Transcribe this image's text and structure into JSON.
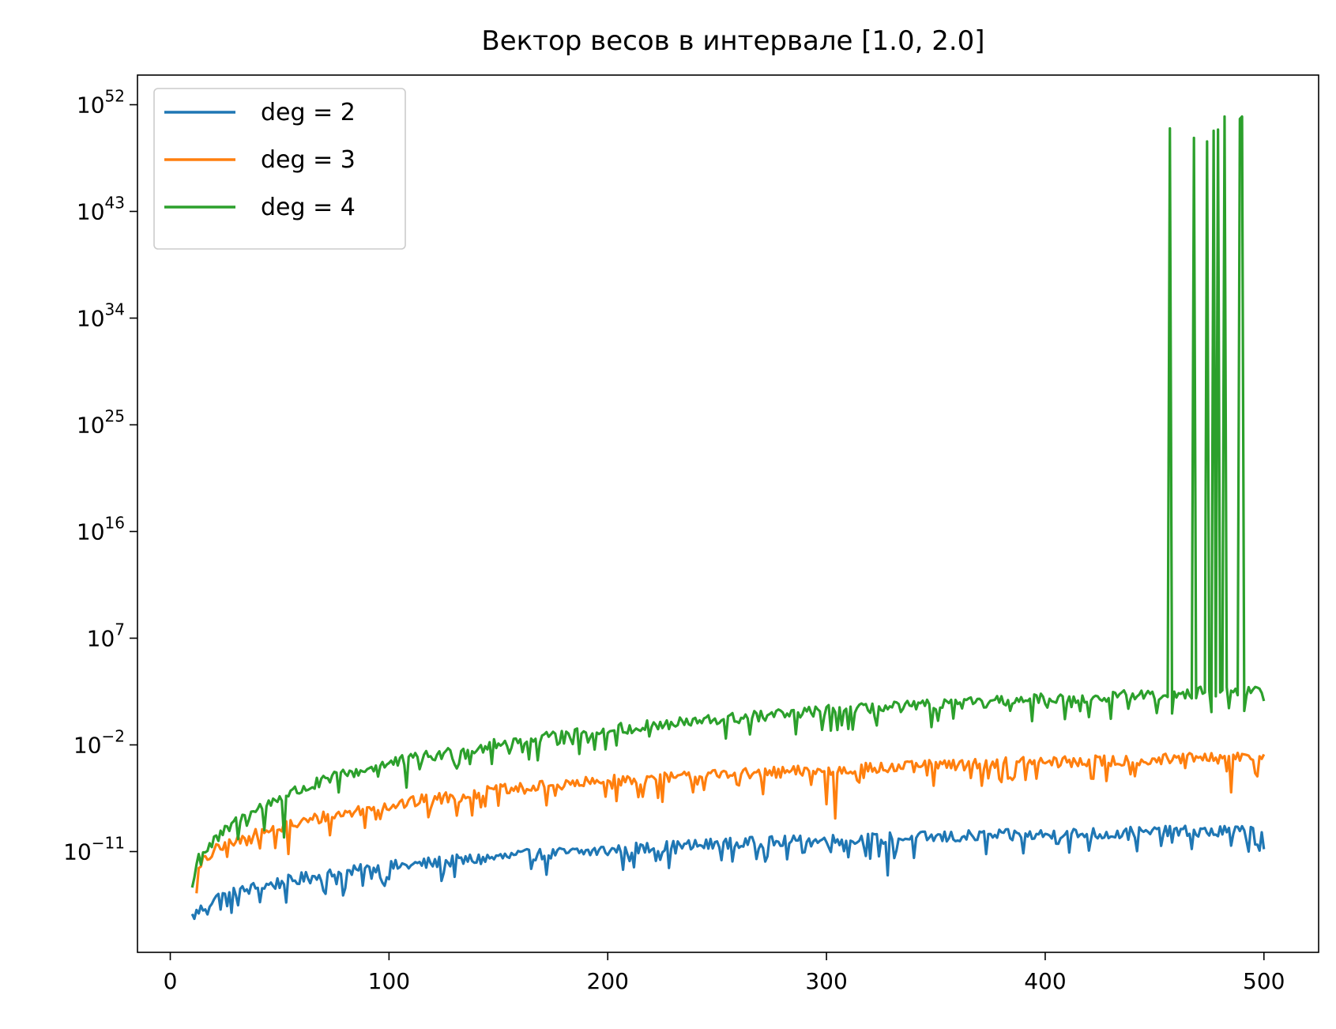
{
  "colors": {
    "deg2": "#1f77b4",
    "deg3": "#ff7f0e",
    "deg4": "#2ca02c",
    "axes": "#000000",
    "background": "#ffffff"
  },
  "chart_data": {
    "type": "line",
    "title": "Вектор весов в интервале [1.0, 2.0]",
    "xlabel": "",
    "ylabel": "",
    "yscale": "log",
    "xlim": [
      -15,
      525
    ],
    "ylim_log10": [
      -19.5,
      54.5
    ],
    "grid": false,
    "legend_position": "top-left",
    "x_ticks": [
      0,
      100,
      200,
      300,
      400,
      500
    ],
    "y_ticks": [
      {
        "base": "10",
        "exp": "52",
        "log10": 52
      },
      {
        "base": "10",
        "exp": "43",
        "log10": 43
      },
      {
        "base": "10",
        "exp": "34",
        "log10": 34
      },
      {
        "base": "10",
        "exp": "25",
        "log10": 25
      },
      {
        "base": "10",
        "exp": "16",
        "log10": 16
      },
      {
        "base": "10",
        "exp": "7",
        "log10": 7
      },
      {
        "base": "10",
        "exp": "−2",
        "log10": -2
      },
      {
        "base": "10",
        "exp": "−11",
        "log10": -11
      }
    ],
    "series": [
      {
        "name": "deg = 2",
        "color_key": "deg2",
        "x_start": 10,
        "x_end": 500,
        "knots_x": [
          10,
          20,
          40,
          60,
          80,
          100,
          150,
          200,
          250,
          300,
          350,
          400,
          450,
          500
        ],
        "knots_log10": [
          -16.5,
          -15.0,
          -14.0,
          -13.3,
          -12.8,
          -12.3,
          -11.5,
          -10.9,
          -10.4,
          -10.1,
          -9.8,
          -9.6,
          -9.4,
          -9.3
        ],
        "spikes": [
          {
            "x": 17,
            "log10": -16.3
          },
          {
            "x": 26,
            "log10": -15.6
          },
          {
            "x": 79,
            "log10": -14.7
          },
          {
            "x": 96,
            "log10": -13.2
          },
          {
            "x": 210,
            "log10": -11.8
          },
          {
            "x": 328,
            "log10": -13.0
          },
          {
            "x": 485,
            "log10": -10.5
          },
          {
            "x": 493,
            "log10": -11.0
          }
        ],
        "end_log10": -10.8
      },
      {
        "name": "deg = 3",
        "color_key": "deg3",
        "x_start": 12,
        "x_end": 500,
        "knots_x": [
          12,
          15,
          20,
          30,
          50,
          70,
          100,
          150,
          200,
          250,
          300,
          350,
          400,
          450,
          500
        ],
        "knots_log10": [
          -13.0,
          -11.9,
          -11.0,
          -10.2,
          -9.0,
          -8.1,
          -7.1,
          -5.9,
          -5.1,
          -4.6,
          -4.2,
          -3.8,
          -3.5,
          -3.3,
          -3.1
        ],
        "spikes": [
          {
            "x": 54,
            "log10": -11.2
          },
          {
            "x": 118,
            "log10": -8.1
          },
          {
            "x": 225,
            "log10": -6.8
          },
          {
            "x": 300,
            "log10": -7.0
          },
          {
            "x": 304,
            "log10": -8.2
          },
          {
            "x": 386,
            "log10": -4.7
          },
          {
            "x": 485,
            "log10": -6.0
          }
        ],
        "end_log10": -2.8
      },
      {
        "name": "deg = 4",
        "color_key": "deg4",
        "x_start": 10,
        "x_end": 500,
        "knots_x": [
          10,
          13,
          20,
          30,
          50,
          80,
          100,
          150,
          200,
          250,
          300,
          350,
          400,
          450,
          500
        ],
        "knots_log10": [
          -14.0,
          -11.4,
          -10.2,
          -8.5,
          -6.4,
          -4.5,
          -3.6,
          -2.0,
          -0.8,
          0.1,
          0.8,
          1.3,
          1.8,
          2.2,
          2.6
        ],
        "spikes": [
          {
            "x": 43,
            "log10": -9.2
          },
          {
            "x": 52,
            "log10": -9.8
          },
          {
            "x": 108,
            "log10": -5.6
          },
          {
            "x": 168,
            "log10": -3.3
          },
          {
            "x": 302,
            "log10": -0.8
          },
          {
            "x": 348,
            "log10": -0.5
          },
          {
            "x": 394,
            "log10": 0.0
          },
          {
            "x": 430,
            "log10": 0.2
          },
          {
            "x": 484,
            "log10": 1.1
          }
        ],
        "bursts": [
          {
            "x": 457,
            "log10": 50.0
          },
          {
            "x": 468,
            "log10": 49.2
          },
          {
            "x": 474,
            "log10": 48.9
          },
          {
            "x": 477,
            "log10": 49.8
          },
          {
            "x": 479,
            "log10": 49.9
          },
          {
            "x": 482,
            "log10": 51.0
          },
          {
            "x": 489,
            "log10": 50.8
          },
          {
            "x": 490,
            "log10": 51.0
          }
        ],
        "end_log10": 1.7
      }
    ]
  }
}
